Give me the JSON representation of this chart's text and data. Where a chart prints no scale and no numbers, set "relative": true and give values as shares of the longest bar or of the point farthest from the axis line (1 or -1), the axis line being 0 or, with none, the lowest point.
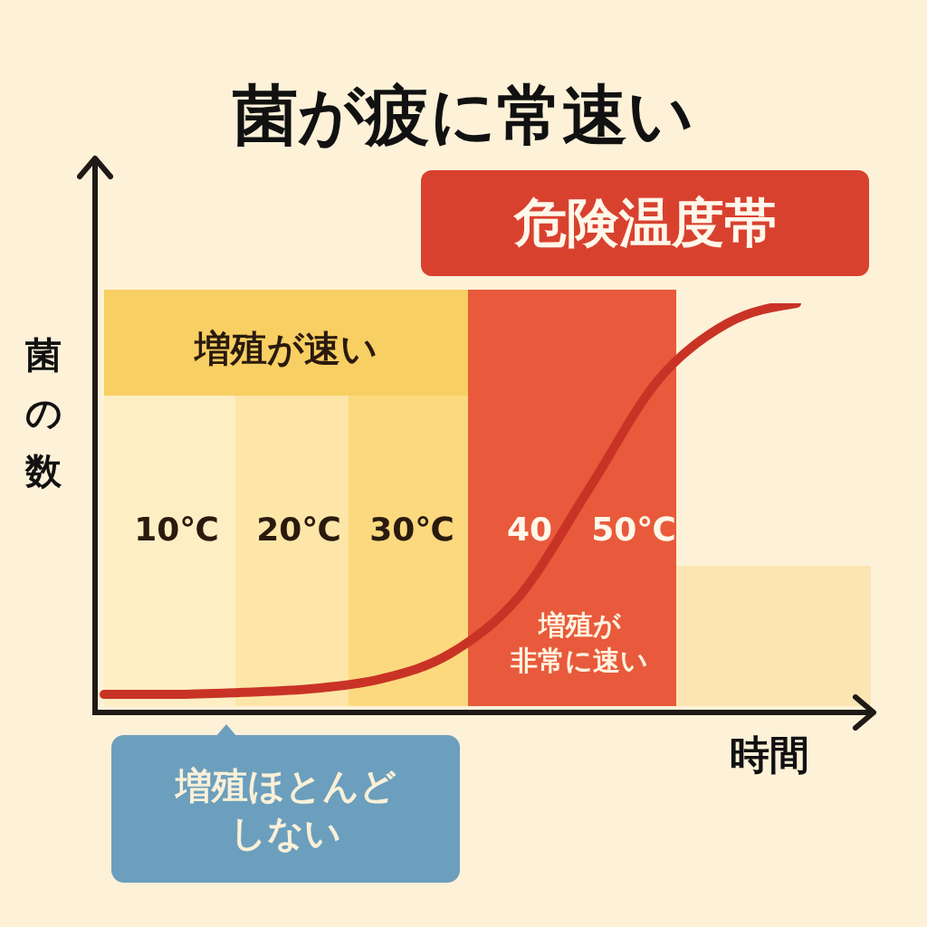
{
  "chart_data": {
    "type": "line",
    "title": "菌が疲に常速い",
    "xlabel": "時間",
    "ylabel": "菌の数",
    "relative": true,
    "categories": [
      null,
      null,
      null,
      null,
      null,
      null,
      null,
      null,
      null,
      null,
      null
    ],
    "series": [
      {
        "color": "#c93326",
        "values": [
          0.044,
          0.044,
          0.049,
          0.058,
          0.082,
          0.144,
          0.285,
          0.546,
          0.812,
          0.951,
          1
        ]
      }
    ],
    "annotations": [
      "危険温度帯",
      "増殖が速い",
      "10℃",
      "20℃",
      "30℃",
      "40",
      "50℃",
      "増殖が非常に速い",
      "増殖ほとんどしない"
    ]
  }
}
